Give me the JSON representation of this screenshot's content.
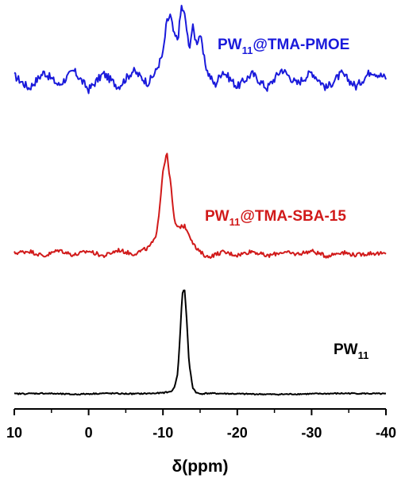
{
  "chart_data": {
    "type": "line",
    "title": "",
    "xlabel": "δ(ppm)",
    "ylabel": "",
    "xlim": [
      10,
      -40
    ],
    "x_reversed": true,
    "x_ticks": [
      10,
      0,
      -10,
      -20,
      -30,
      -40
    ],
    "x_tick_labels": [
      "10",
      "0",
      "-10",
      "-20",
      "-30",
      "-40"
    ],
    "y_axis_shown": false,
    "grid": false,
    "legend": "labels placed beside each trace",
    "series": [
      {
        "name_parts": [
          "PW",
          "11",
          "@TMA-PMOE"
        ],
        "color": "#1a1adb",
        "stack_order": 3,
        "x": [
          10,
          8,
          6,
          4,
          2,
          0,
          -2,
          -4,
          -6,
          -8,
          -9,
          -10,
          -10.5,
          -11,
          -11.5,
          -12,
          -12.5,
          -13,
          -13.5,
          -14,
          -14.5,
          -15,
          -15.5,
          -16,
          -17,
          -18,
          -20,
          -22,
          -24,
          -26,
          -28,
          -30,
          -32,
          -34,
          -36,
          -38,
          -40
        ],
        "y": [
          0.05,
          -0.12,
          0.1,
          -0.08,
          0.12,
          -0.14,
          0.08,
          -0.1,
          0.12,
          -0.05,
          0.1,
          0.35,
          0.78,
          0.88,
          0.6,
          0.55,
          1.0,
          0.85,
          0.42,
          0.72,
          0.5,
          0.62,
          0.3,
          0.1,
          -0.08,
          0.12,
          -0.1,
          0.08,
          -0.12,
          0.14,
          -0.06,
          0.1,
          -0.12,
          0.08,
          -0.1,
          0.12,
          0.02
        ]
      },
      {
        "name_parts": [
          "PW",
          "11",
          "@TMA-SBA-15"
        ],
        "color": "#d11a1a",
        "stack_order": 2,
        "x": [
          10,
          8,
          6,
          4,
          2,
          0,
          -2,
          -4,
          -6,
          -8,
          -9,
          -9.5,
          -10,
          -10.5,
          -11,
          -11.5,
          -12,
          -12.5,
          -13,
          -13.5,
          -14,
          -14.5,
          -15,
          -16,
          -18,
          -20,
          -22,
          -24,
          -26,
          -28,
          -30,
          -32,
          -34,
          -36,
          -38,
          -40
        ],
        "y": [
          0.01,
          0.03,
          -0.02,
          0.04,
          -0.01,
          0.03,
          -0.02,
          0.04,
          0.0,
          0.06,
          0.15,
          0.42,
          0.82,
          1.0,
          0.72,
          0.34,
          0.25,
          0.28,
          0.27,
          0.2,
          0.12,
          0.05,
          0.02,
          -0.03,
          0.02,
          -0.01,
          0.03,
          -0.02,
          0.02,
          0.0,
          0.03,
          -0.02,
          0.02,
          -0.01,
          0.01,
          0.0
        ]
      },
      {
        "name_parts": [
          "PW",
          "11",
          ""
        ],
        "color": "#000000",
        "stack_order": 1,
        "x": [
          10,
          6,
          2,
          -2,
          -6,
          -9,
          -10,
          -11,
          -11.5,
          -12,
          -12.3,
          -12.6,
          -12.9,
          -13.2,
          -13.5,
          -14,
          -14.5,
          -15,
          -16,
          -20,
          -25,
          -30,
          -35,
          -40
        ],
        "y": [
          0.0,
          0.005,
          -0.005,
          0.005,
          0.0,
          0.005,
          0.01,
          0.02,
          0.05,
          0.2,
          0.55,
          0.95,
          1.0,
          0.7,
          0.3,
          0.06,
          0.01,
          0.0,
          0.005,
          0.0,
          -0.005,
          0.0,
          0.005,
          0.0
        ]
      }
    ]
  }
}
